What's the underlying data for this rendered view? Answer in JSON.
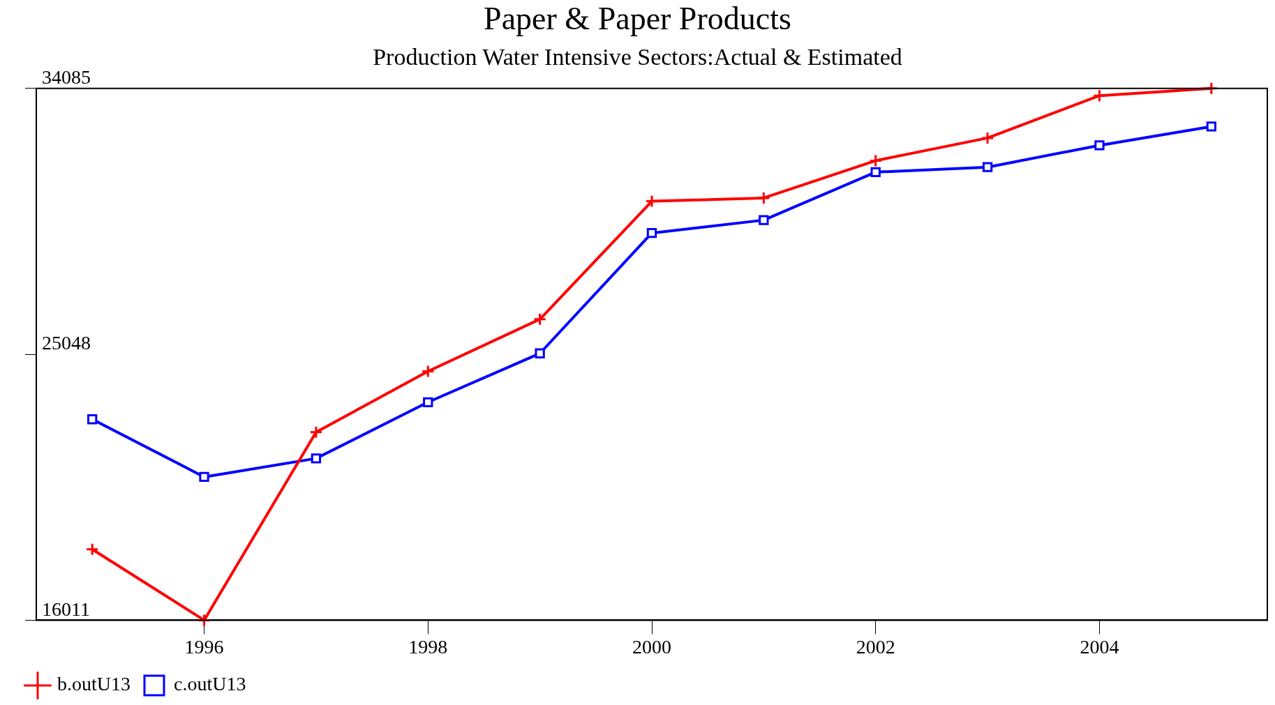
{
  "chart_data": {
    "type": "line",
    "title": "Paper & Paper Products",
    "subtitle": "Production Water Intensive Sectors:Actual & Estimated",
    "x": [
      1995,
      1996,
      1997,
      1998,
      1999,
      2000,
      2001,
      2002,
      2003,
      2004,
      2005
    ],
    "xlim": [
      1994.5,
      2005.5
    ],
    "xticks": [
      1996,
      1998,
      2000,
      2002,
      2004
    ],
    "ylim": [
      16011,
      34085
    ],
    "yticks": [
      16011,
      25048,
      34085
    ],
    "grid": false,
    "legend": "bottom left",
    "line_style": "solid",
    "series": [
      {
        "name": "b.outU13",
        "color": "#ff0000",
        "marker": "cross",
        "values": [
          18420,
          16011,
          22400,
          24470,
          26240,
          30250,
          30360,
          31630,
          32400,
          33840,
          34085
        ]
      },
      {
        "name": "c.outU13",
        "color": "#0000ff",
        "marker": "square",
        "values": [
          22840,
          20880,
          21510,
          23420,
          25080,
          29170,
          29610,
          31240,
          31410,
          32150,
          32790
        ]
      }
    ]
  }
}
